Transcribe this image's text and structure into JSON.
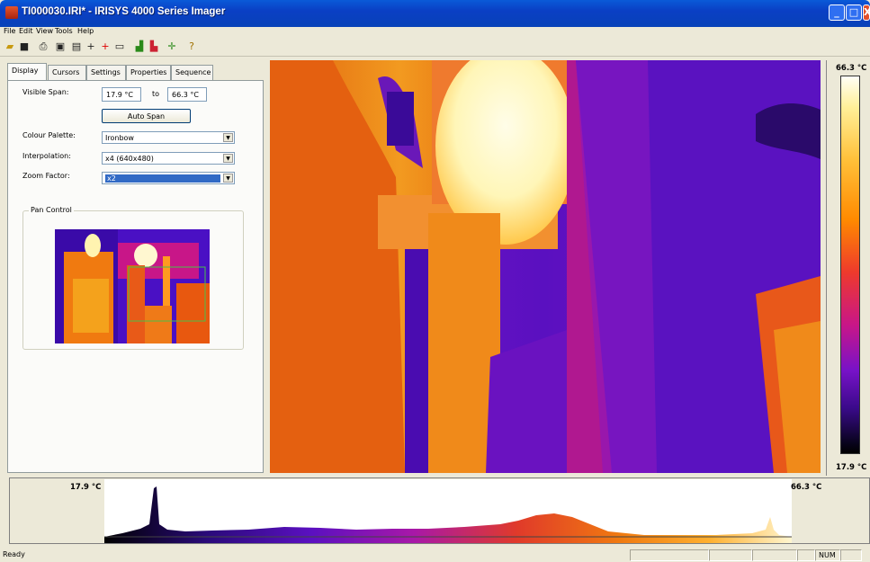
{
  "window": {
    "title": "TI000030.IRI* - IRISYS 4000 Series Imager"
  },
  "menu": [
    "File",
    "Edit",
    "View",
    "Tools",
    "Help"
  ],
  "toolbar_icons": [
    "open-icon",
    "save-icon",
    "print-icon",
    "properties-icon",
    "export-icon",
    "crosshair-cursor-icon",
    "red-crosshair-cursor-icon",
    "rectangle-icon",
    "histogram-icon",
    "colour-histogram-icon",
    "pan-tool-icon",
    "help-icon"
  ],
  "tabs": [
    "Display",
    "Cursors",
    "Settings",
    "Properties",
    "Sequence"
  ],
  "display": {
    "visible_span_label": "Visible Span:",
    "span_min": "17.9 °C",
    "to_label": "to",
    "span_max": "66.3 °C",
    "auto_span_button": "Auto Span",
    "palette_label": "Colour Palette:",
    "palette_value": "Ironbow",
    "interp_label": "Interpolation:",
    "interp_value": "x4 (640x480)",
    "zoom_label": "Zoom Factor:",
    "zoom_value": "x2",
    "pan_label": "Pan Control"
  },
  "scale": {
    "max": "66.3 °C",
    "min": "17.9 °C"
  },
  "histogram": {
    "min": "17.9 °C",
    "max": "66.3 °C"
  },
  "status": {
    "text": "Ready",
    "num": "NUM"
  }
}
